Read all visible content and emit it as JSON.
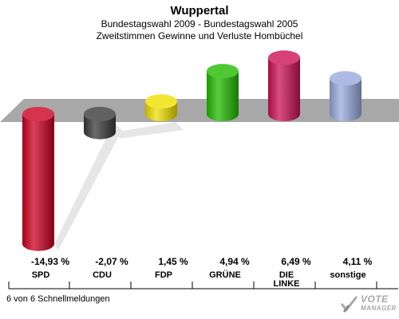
{
  "header": {
    "title": "Wuppertal",
    "subtitle1": "Bundestagswahl 2009 - Bundestagswahl 2005",
    "subtitle2": "Zweitstimmen Gewinne und Verluste Hombüchel"
  },
  "chart_data": {
    "type": "bar",
    "categories": [
      "SPD",
      "CDU",
      "FDP",
      "GRÜNE",
      "DIE LINKE",
      "sonstige"
    ],
    "values": [
      -14.93,
      -2.07,
      1.45,
      4.94,
      6.49,
      4.11
    ],
    "value_labels": [
      "-14,93 %",
      "-2,07 %",
      "1,45 %",
      "4,94 %",
      "6,49 %",
      "4,11 %"
    ],
    "colors": [
      "#cc0022",
      "#3a3a3a",
      "#f0e000",
      "#22bb00",
      "#cc1155",
      "#99aadd"
    ],
    "ylim": [
      -15,
      7
    ],
    "grid": false
  },
  "footer": {
    "text": "6 von 6 Schnellmeldungen"
  },
  "logo": {
    "line1": "VOTE",
    "line2": "MANAGER"
  }
}
